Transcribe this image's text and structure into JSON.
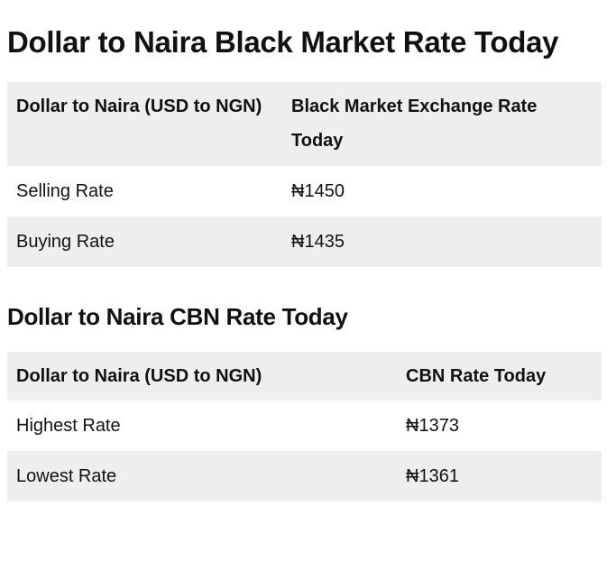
{
  "title": "Dollar to Naira Black Market Rate Today",
  "black_market_table": {
    "headers": [
      "Dollar to Naira (USD to NGN)",
      "Black Market Exchange Rate Today"
    ],
    "rows": [
      [
        "Selling Rate",
        "₦1450"
      ],
      [
        "Buying Rate",
        "₦1435"
      ]
    ]
  },
  "cbn_heading": "Dollar to Naira CBN Rate Today",
  "cbn_table": {
    "headers": [
      "Dollar to Naira (USD to NGN)",
      "CBN Rate Today"
    ],
    "rows": [
      [
        "Highest Rate",
        "₦1373"
      ],
      [
        "Lowest Rate",
        "₦1361"
      ]
    ]
  },
  "colors": {
    "row_shade": "#eeeeee",
    "text": "#111111"
  }
}
